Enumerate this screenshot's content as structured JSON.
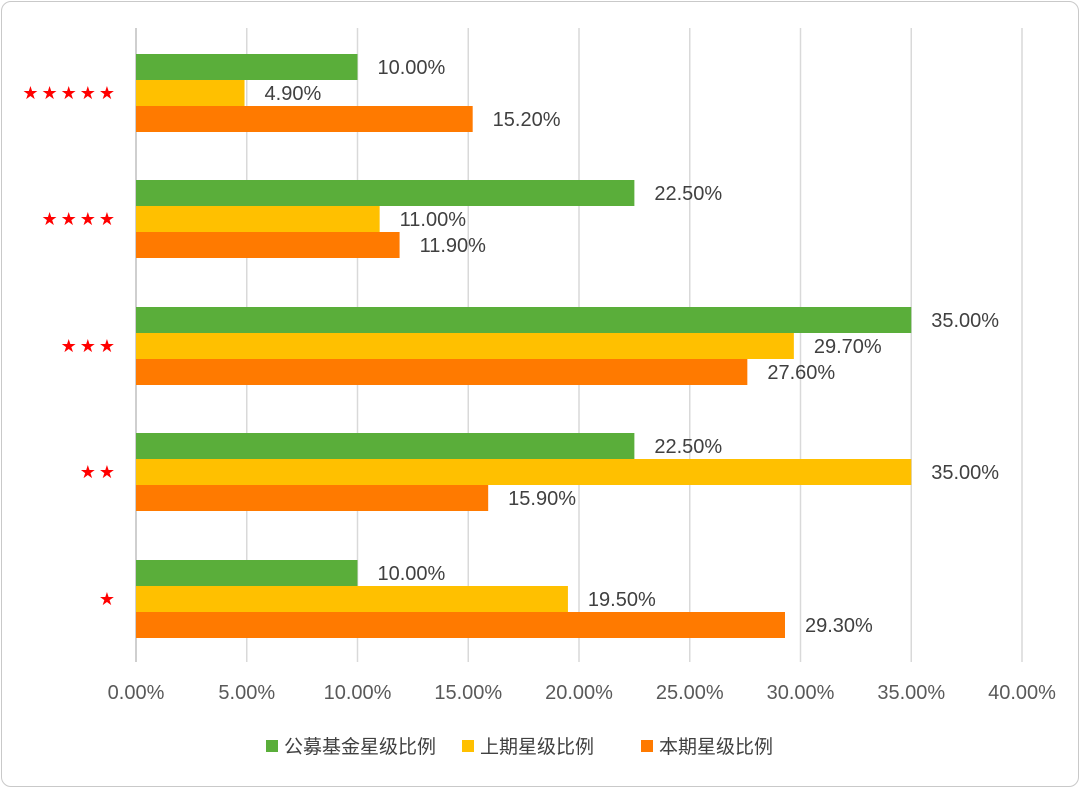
{
  "chart_data": {
    "type": "bar",
    "orientation": "horizontal",
    "categories": [
      "★★★★★",
      "★★★★",
      "★★★",
      "★★",
      "★"
    ],
    "series": [
      {
        "name": "公募基金星级比例",
        "color": "#5aae3a",
        "values": [
          10.0,
          22.5,
          35.0,
          22.5,
          10.0
        ],
        "labels": [
          "10.00%",
          "22.50%",
          "35.00%",
          "22.50%",
          "10.00%"
        ]
      },
      {
        "name": "上期星级比例",
        "color": "#ffc000",
        "values": [
          4.9,
          11.0,
          29.7,
          35.0,
          19.5
        ],
        "labels": [
          "4.90%",
          "11.00%",
          "29.70%",
          "35.00%",
          "19.50%"
        ]
      },
      {
        "name": "本期星级比例",
        "color": "#ff7a00",
        "values": [
          15.2,
          11.9,
          27.6,
          15.9,
          29.3
        ],
        "labels": [
          "15.20%",
          "11.90%",
          "27.60%",
          "15.90%",
          "29.30%"
        ]
      }
    ],
    "xlim": [
      0,
      40
    ],
    "x_ticks": [
      "0.00%",
      "5.00%",
      "10.00%",
      "15.00%",
      "20.00%",
      "25.00%",
      "30.00%",
      "35.00%",
      "40.00%"
    ],
    "grid": true,
    "legend_position": "bottom",
    "category_label_color": "#ff0000",
    "title": "",
    "xlabel": "",
    "ylabel": ""
  }
}
